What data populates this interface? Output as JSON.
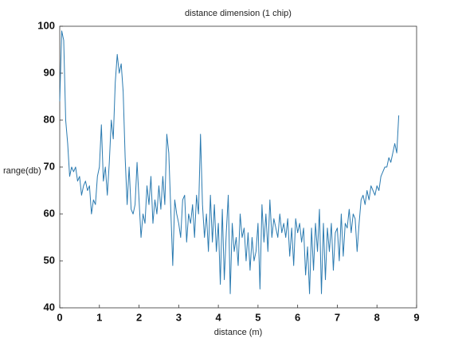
{
  "chart_data": {
    "type": "line",
    "title": "distance dimension (1 chip)",
    "xlabel": "distance (m)",
    "ylabel": "range(db)",
    "x": [
      0,
      0.05,
      0.1,
      0.15,
      0.2,
      0.25,
      0.3,
      0.35,
      0.4,
      0.45,
      0.5,
      0.55,
      0.6,
      0.65,
      0.7,
      0.75,
      0.8,
      0.85,
      0.9,
      0.95,
      1,
      1.05,
      1.1,
      1.15,
      1.2,
      1.25,
      1.3,
      1.35,
      1.4,
      1.45,
      1.5,
      1.55,
      1.6,
      1.65,
      1.7,
      1.75,
      1.8,
      1.85,
      1.9,
      1.95,
      2,
      2.05,
      2.1,
      2.15,
      2.2,
      2.25,
      2.3,
      2.35,
      2.4,
      2.45,
      2.5,
      2.55,
      2.6,
      2.65,
      2.7,
      2.75,
      2.8,
      2.85,
      2.9,
      2.95,
      3,
      3.05,
      3.1,
      3.15,
      3.2,
      3.25,
      3.3,
      3.35,
      3.4,
      3.45,
      3.5,
      3.55,
      3.6,
      3.65,
      3.7,
      3.75,
      3.8,
      3.85,
      3.9,
      3.95,
      4,
      4.05,
      4.1,
      4.15,
      4.2,
      4.25,
      4.3,
      4.35,
      4.4,
      4.45,
      4.5,
      4.55,
      4.6,
      4.65,
      4.7,
      4.75,
      4.8,
      4.85,
      4.9,
      4.95,
      5,
      5.05,
      5.1,
      5.15,
      5.2,
      5.25,
      5.3,
      5.35,
      5.4,
      5.45,
      5.5,
      5.55,
      5.6,
      5.65,
      5.7,
      5.75,
      5.8,
      5.85,
      5.9,
      5.95,
      6,
      6.05,
      6.1,
      6.15,
      6.2,
      6.25,
      6.3,
      6.35,
      6.4,
      6.45,
      6.5,
      6.55,
      6.6,
      6.65,
      6.7,
      6.75,
      6.8,
      6.85,
      6.9,
      6.95,
      7,
      7.05,
      7.1,
      7.15,
      7.2,
      7.25,
      7.3,
      7.35,
      7.4,
      7.45,
      7.5,
      7.55,
      7.6,
      7.65,
      7.7,
      7.75,
      7.8,
      7.85,
      7.9,
      7.95,
      8,
      8.05,
      8.1,
      8.15,
      8.2,
      8.25,
      8.3,
      8.35,
      8.4,
      8.45,
      8.5,
      8.55
    ],
    "series": [
      {
        "color": "#2a7ab0",
        "values": [
          84,
          99,
          97,
          80,
          75,
          68,
          70,
          69,
          70,
          67,
          68,
          64,
          66,
          67,
          65,
          66,
          60,
          63,
          62,
          68,
          70,
          79,
          67,
          70,
          64,
          71,
          80,
          76,
          88,
          94,
          90,
          92,
          86,
          72,
          62,
          70,
          61,
          60,
          62,
          71,
          63,
          55,
          60,
          58,
          66,
          62,
          68,
          58,
          63,
          60,
          66,
          61,
          68,
          62,
          77,
          73,
          61,
          49,
          63,
          60,
          58,
          55,
          63,
          64,
          54,
          60,
          58,
          62,
          55,
          64,
          60,
          77,
          62,
          55,
          60,
          52,
          64,
          54,
          62,
          52,
          58,
          45,
          61,
          46,
          56,
          64,
          43,
          58,
          52,
          55,
          49,
          60,
          55,
          57,
          50,
          56,
          48,
          55,
          50,
          52,
          58,
          44,
          62,
          54,
          60,
          52,
          63,
          55,
          59,
          57,
          55,
          60,
          56,
          58,
          55,
          59,
          51,
          57,
          49,
          59,
          56,
          58,
          54,
          57,
          47,
          53,
          43,
          57,
          48,
          58,
          52,
          61,
          43,
          58,
          46,
          57,
          52,
          58,
          48,
          56,
          57,
          50,
          60,
          51,
          58,
          57,
          61,
          56,
          60,
          59,
          52,
          58,
          63,
          64,
          62,
          65,
          63,
          66,
          65,
          64,
          66,
          65,
          68,
          69,
          70,
          70,
          72,
          71,
          73,
          75,
          73,
          81
        ]
      }
    ],
    "xlim": [
      0,
      9
    ],
    "xticks": [
      0,
      1,
      2,
      3,
      4,
      5,
      6,
      7,
      8,
      9
    ],
    "ylim": [
      40,
      100
    ],
    "yticks": [
      40,
      50,
      60,
      70,
      80,
      90,
      100
    ]
  }
}
